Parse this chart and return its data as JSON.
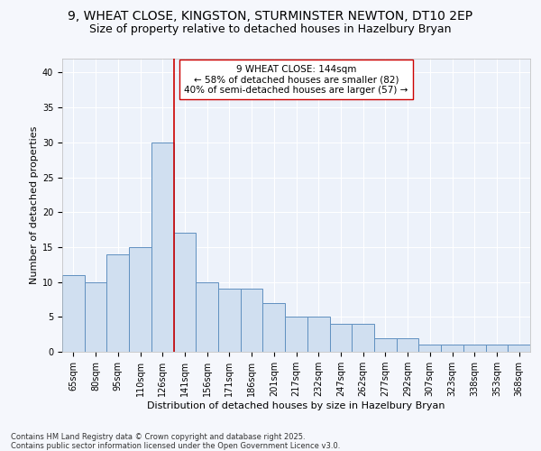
{
  "title1": "9, WHEAT CLOSE, KINGSTON, STURMINSTER NEWTON, DT10 2EP",
  "title2": "Size of property relative to detached houses in Hazelbury Bryan",
  "xlabel": "Distribution of detached houses by size in Hazelbury Bryan",
  "ylabel": "Number of detached properties",
  "categories": [
    "65sqm",
    "80sqm",
    "95sqm",
    "110sqm",
    "126sqm",
    "141sqm",
    "156sqm",
    "171sqm",
    "186sqm",
    "201sqm",
    "217sqm",
    "232sqm",
    "247sqm",
    "262sqm",
    "277sqm",
    "292sqm",
    "307sqm",
    "323sqm",
    "338sqm",
    "353sqm",
    "368sqm"
  ],
  "values": [
    11,
    10,
    14,
    15,
    30,
    17,
    10,
    9,
    9,
    7,
    5,
    5,
    4,
    4,
    2,
    2,
    1,
    1,
    1,
    1,
    1
  ],
  "bar_color": "#d0dff0",
  "bar_edgecolor": "#6090c0",
  "vline_color": "#cc0000",
  "vline_x": 4.5,
  "annotation_line1": "9 WHEAT CLOSE: 144sqm",
  "annotation_line2": "← 58% of detached houses are smaller (82)",
  "annotation_line3": "40% of semi-detached houses are larger (57) →",
  "annotation_box_edgecolor": "#cc0000",
  "ylim": [
    0,
    42
  ],
  "yticks": [
    0,
    5,
    10,
    15,
    20,
    25,
    30,
    35,
    40
  ],
  "background_color": "#f5f7fc",
  "plot_bg_color": "#edf2fa",
  "grid_color": "#ffffff",
  "footer1": "Contains HM Land Registry data © Crown copyright and database right 2025.",
  "footer2": "Contains public sector information licensed under the Open Government Licence v3.0.",
  "title_fontsize": 10,
  "subtitle_fontsize": 9,
  "axis_label_fontsize": 8,
  "tick_fontsize": 7,
  "annotation_fontsize": 7.5,
  "footer_fontsize": 6
}
